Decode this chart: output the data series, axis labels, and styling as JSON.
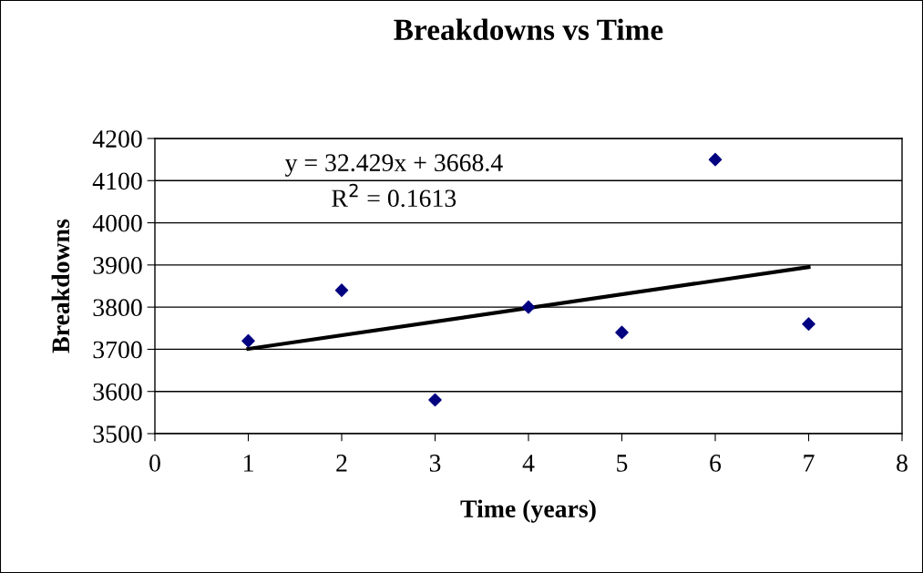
{
  "chart_data": {
    "type": "scatter",
    "title": "Breakdowns vs Time",
    "xlabel": "Time (years)",
    "ylabel": "Breakdowns",
    "series": [
      {
        "color": "#000080",
        "x": [
          1,
          2,
          3,
          4,
          5,
          6,
          7
        ],
        "values": [
          3720,
          3840,
          3580,
          3800,
          3740,
          4150,
          3760
        ],
        "marker": "diamond"
      },
      {
        "type": "line",
        "color": "#000000",
        "x": [
          1,
          7
        ],
        "values": [
          3701,
          3895
        ],
        "marker": "none",
        "line_style": "solid"
      }
    ],
    "annotations": [
      "y = 32.429x + 3668.4",
      "R$^{2}$ = 0.1613"
    ],
    "xlim": [
      0,
      8
    ],
    "xticks": [
      0,
      1,
      2,
      3,
      4,
      5,
      6,
      7,
      8
    ],
    "ylim": [
      3500,
      4200
    ],
    "yticks": [
      3500,
      3600,
      3700,
      3800,
      3900,
      4000,
      4100,
      4200
    ],
    "grid": "y",
    "legend": false
  }
}
